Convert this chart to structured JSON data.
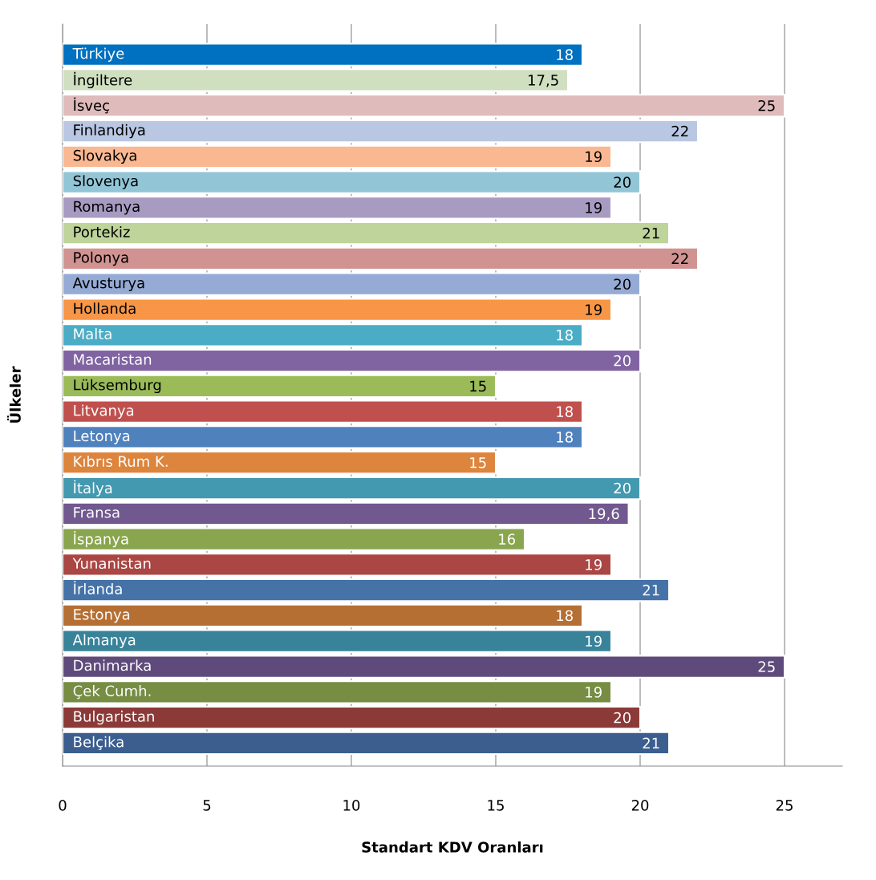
{
  "chart_data": {
    "type": "bar",
    "orientation": "horizontal",
    "xlabel": "Standart KDV Oranları",
    "ylabel": "Ülkeler",
    "categories": [
      "Türkiye",
      "İngiltere",
      "İsveç",
      "Finlandiya",
      "Slovakya",
      "Slovenya",
      "Romanya",
      "Portekiz",
      "Polonya",
      "Avusturya",
      "Hollanda",
      "Malta",
      "Macaristan",
      "Lüksemburg",
      "Litvanya",
      "Letonya",
      "Kıbrıs Rum K.",
      "İtalya",
      "Fransa",
      "İspanya",
      "Yunanistan",
      "İrlanda",
      "Estonya",
      "Almanya",
      "Danimarka",
      "Çek Cumh.",
      "Bulgaristan",
      "Belçika"
    ],
    "values": [
      18,
      17.5,
      25,
      22,
      19,
      20,
      19,
      21,
      22,
      20,
      19,
      18,
      20,
      15,
      18,
      18,
      15,
      20,
      19.6,
      16,
      19,
      21,
      18,
      19,
      25,
      19,
      20,
      21
    ],
    "value_labels": [
      "18",
      "17,5",
      "25",
      "22",
      "19",
      "20",
      "19",
      "21",
      "22",
      "20",
      "19",
      "18",
      "20",
      "15",
      "18",
      "18",
      "15",
      "20",
      "19,6",
      "16",
      "19",
      "21",
      "18",
      "19",
      "25",
      "19",
      "20",
      "21"
    ],
    "colors": [
      "#0070c0",
      "#d0dfc0",
      "#e0bbbb",
      "#b9c7e3",
      "#f9b891",
      "#92c5d6",
      "#a89bc2",
      "#bed49a",
      "#d19391",
      "#95abd5",
      "#f79646",
      "#4bacc6",
      "#8064a2",
      "#9bbb59",
      "#c0504d",
      "#4f81bd",
      "#dd843d",
      "#4399af",
      "#71588f",
      "#89a54e",
      "#aa4643",
      "#4572a7",
      "#b66f33",
      "#38839a",
      "#5f4b7b",
      "#768d43",
      "#8b3a38",
      "#3b5e8f"
    ],
    "xlim": [
      0,
      27
    ],
    "xticks": [
      0,
      5,
      10,
      15,
      20,
      25
    ],
    "grid": "x",
    "legend": false
  }
}
